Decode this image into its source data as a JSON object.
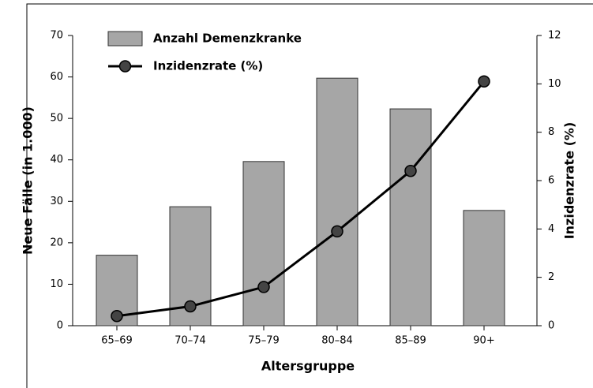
{
  "chart_data": {
    "type": "bar-line",
    "x_label": "Altersgruppe",
    "y_label": "Neue Fälle (in 1.000)",
    "y2_label": "Inzidenzrate (%)",
    "categories": [
      "65–69",
      "70–74",
      "75–79",
      "80–84",
      "85–89",
      "90+"
    ],
    "series": [
      {
        "name": "Anzahl Demenzkranke",
        "type": "bar",
        "color": "#a6a6a6",
        "values": [
          17,
          28.7,
          39.6,
          59.7,
          52.3,
          27.8
        ]
      },
      {
        "name": "Inzidenzrate (%)",
        "type": "line",
        "axis": "y2",
        "color": "#000000",
        "values": [
          0.4,
          0.8,
          1.6,
          3.9,
          6.4,
          10.1
        ]
      }
    ],
    "ylim": [
      0,
      70
    ],
    "yticks": [
      0,
      10,
      20,
      30,
      40,
      50,
      60,
      70
    ],
    "y2lim": [
      0,
      12
    ],
    "y2ticks": [
      0,
      2,
      4,
      6,
      8,
      10,
      12
    ]
  }
}
